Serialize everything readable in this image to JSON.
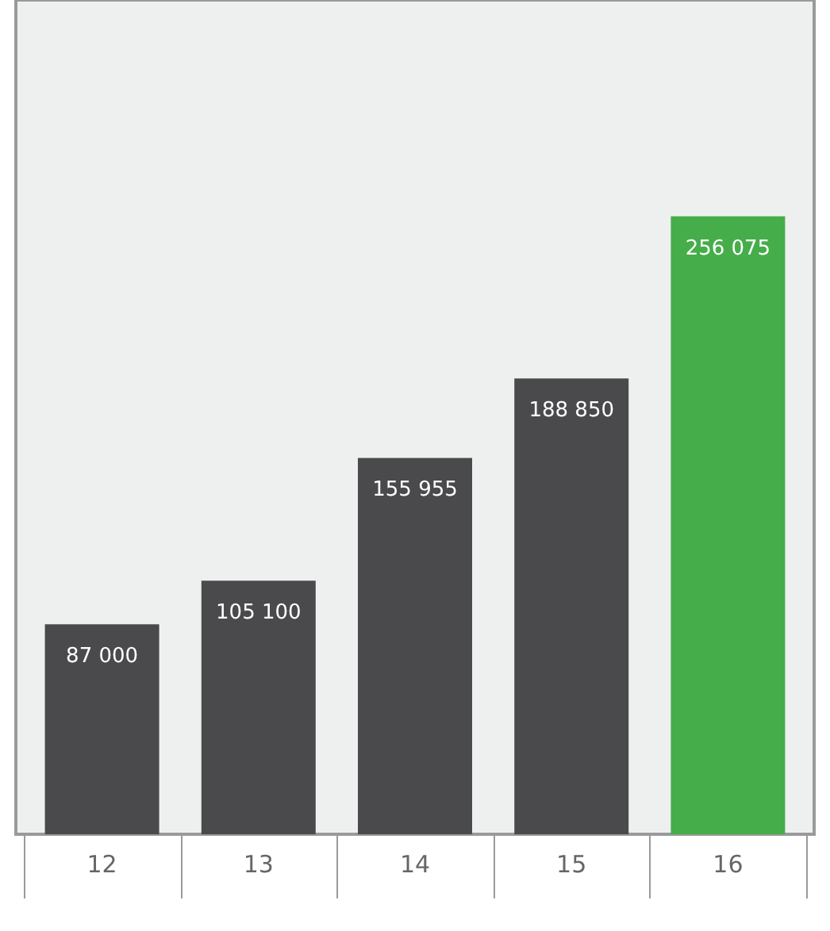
{
  "chart_data": {
    "type": "bar",
    "categories": [
      "12",
      "13",
      "14",
      "15",
      "16"
    ],
    "values": [
      87000,
      105100,
      155955,
      188850,
      256075
    ],
    "colors": [
      "#4a4a4c",
      "#4a4a4c",
      "#4a4a4c",
      "#4a4a4c",
      "#45ad49"
    ],
    "value_labels": [
      "87 000",
      "105 100",
      "155 955",
      "188 850",
      "256 075"
    ],
    "grid": false,
    "tick_labels": "x"
  }
}
